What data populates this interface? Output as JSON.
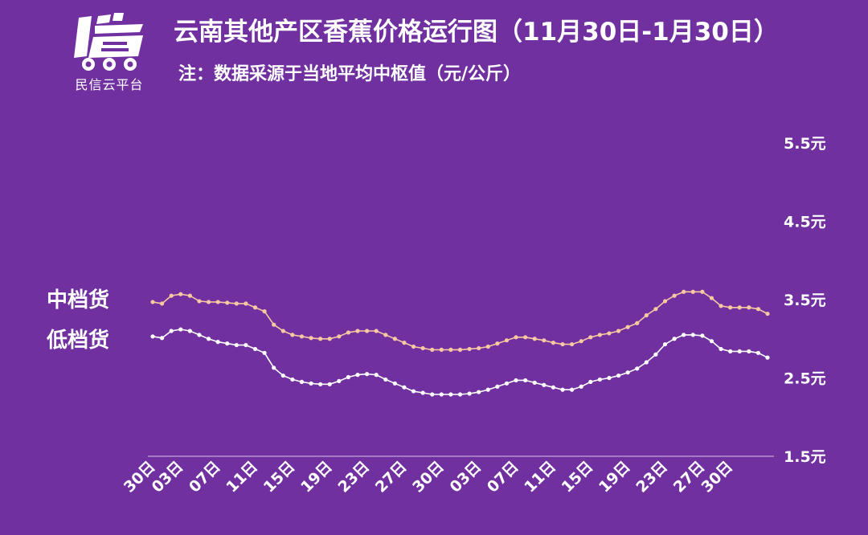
{
  "logo": {
    "text": "民信云平台",
    "icon": "truck-logo-icon"
  },
  "title": "云南其他产区香蕉价格运行图（11月30日-1月30日）",
  "subtitle": "注：数据采源于当地平均中枢值（元/公斤）",
  "colors": {
    "background": "#7030a0",
    "mid": "#f8c9a0",
    "low": "#ffffff",
    "axis": "#d8c4e8"
  },
  "chart_data": {
    "type": "line",
    "ylim": [
      1.5,
      5.5
    ],
    "yticks": [
      "5.5元",
      "4.5元",
      "3.5元",
      "2.5元",
      "1.5元"
    ],
    "ytick_values": [
      5.5,
      4.5,
      3.5,
      2.5,
      1.5
    ],
    "xticks": [
      "30日",
      "03日",
      "07日",
      "11日",
      "15日",
      "19日",
      "23日",
      "27日",
      "30日",
      "03日",
      "07日",
      "11日",
      "15日",
      "19日",
      "23日",
      "27日",
      "30日"
    ],
    "xtick_index": [
      0,
      3,
      7,
      11,
      15,
      19,
      23,
      27,
      31,
      35,
      39,
      43,
      47,
      51,
      55,
      59,
      62
    ],
    "series": [
      {
        "name": "中档货",
        "values": [
          3.47,
          3.45,
          3.55,
          3.57,
          3.55,
          3.48,
          3.47,
          3.47,
          3.46,
          3.45,
          3.45,
          3.4,
          3.35,
          3.18,
          3.1,
          3.05,
          3.03,
          3.01,
          3.0,
          3.0,
          3.03,
          3.08,
          3.1,
          3.1,
          3.1,
          3.05,
          3.0,
          2.95,
          2.9,
          2.88,
          2.86,
          2.86,
          2.86,
          2.86,
          2.87,
          2.88,
          2.9,
          2.94,
          2.98,
          3.02,
          3.02,
          3.0,
          2.98,
          2.95,
          2.93,
          2.93,
          2.97,
          3.02,
          3.05,
          3.07,
          3.1,
          3.15,
          3.2,
          3.3,
          3.38,
          3.48,
          3.55,
          3.6,
          3.6,
          3.6,
          3.52,
          3.42,
          3.4,
          3.4,
          3.4,
          3.38,
          3.32
        ]
      },
      {
        "name": "低档货",
        "values": [
          3.03,
          3.01,
          3.1,
          3.12,
          3.1,
          3.05,
          3.0,
          2.96,
          2.94,
          2.92,
          2.92,
          2.87,
          2.82,
          2.63,
          2.53,
          2.48,
          2.45,
          2.43,
          2.42,
          2.42,
          2.46,
          2.51,
          2.54,
          2.55,
          2.54,
          2.48,
          2.43,
          2.38,
          2.33,
          2.31,
          2.29,
          2.29,
          2.29,
          2.29,
          2.3,
          2.32,
          2.35,
          2.39,
          2.43,
          2.47,
          2.47,
          2.44,
          2.41,
          2.38,
          2.35,
          2.35,
          2.39,
          2.45,
          2.48,
          2.5,
          2.53,
          2.57,
          2.62,
          2.7,
          2.8,
          2.93,
          3.0,
          3.05,
          3.05,
          3.04,
          2.97,
          2.87,
          2.84,
          2.84,
          2.84,
          2.82,
          2.76
        ]
      }
    ]
  }
}
